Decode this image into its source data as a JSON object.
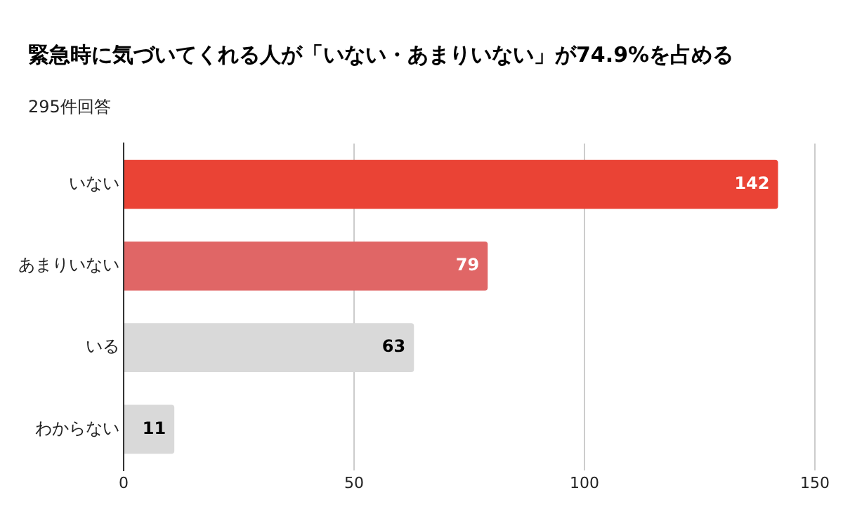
{
  "chart_data": {
    "type": "bar",
    "orientation": "horizontal",
    "title": "緊急時に気づいてくれる人が「いない・あまりいない」が74.9%を占める",
    "subtitle": "295件回答",
    "categories": [
      "いない",
      "あまりいない",
      "いる",
      "わからない"
    ],
    "values": [
      142,
      79,
      63,
      11
    ],
    "colors": [
      "#ea4335",
      "#e06666",
      "#d9d9d9",
      "#d9d9d9"
    ],
    "xlim": [
      0,
      150
    ],
    "xticks": [
      0,
      50,
      100,
      150
    ],
    "grid": "x",
    "data_labels": true,
    "legend": false
  }
}
